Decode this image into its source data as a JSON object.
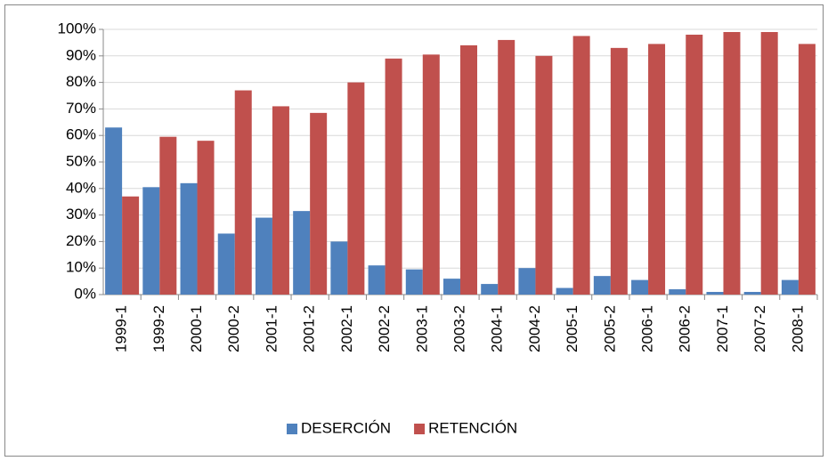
{
  "chart_data": {
    "type": "bar",
    "categories": [
      "1999-1",
      "1999-2",
      "2000-1",
      "2000-2",
      "2001-1",
      "2001-2",
      "2002-1",
      "2002-2",
      "2003-1",
      "2003-2",
      "2004-1",
      "2004-2",
      "2005-1",
      "2005-2",
      "2006-1",
      "2006-2",
      "2007-1",
      "2007-2",
      "2008-1"
    ],
    "series": [
      {
        "name": "DESERCIÓN",
        "color": "#4f81bd",
        "values": [
          63,
          40.5,
          42,
          23,
          29,
          31.5,
          20,
          11,
          9.5,
          6,
          4,
          10,
          2.5,
          7,
          5.5,
          2,
          1,
          1,
          5.5
        ]
      },
      {
        "name": "RETENCIÓN",
        "color": "#c0504d",
        "values": [
          37,
          59.5,
          58,
          77,
          71,
          68.5,
          80,
          89,
          90.5,
          94,
          96,
          90,
          97.5,
          93,
          94.5,
          98,
          99,
          99,
          94.5
        ]
      }
    ],
    "ylim": [
      0,
      100
    ],
    "yticks": [
      {
        "value": 0,
        "label": "0%"
      },
      {
        "value": 10,
        "label": "10%"
      },
      {
        "value": 20,
        "label": "20%"
      },
      {
        "value": 30,
        "label": "30%"
      },
      {
        "value": 40,
        "label": "40%"
      },
      {
        "value": 50,
        "label": "50%"
      },
      {
        "value": 60,
        "label": "60%"
      },
      {
        "value": 70,
        "label": "70%"
      },
      {
        "value": 80,
        "label": "80%"
      },
      {
        "value": 90,
        "label": "90%"
      },
      {
        "value": 100,
        "label": "100%"
      }
    ],
    "grid": true,
    "legend": "bottom"
  }
}
